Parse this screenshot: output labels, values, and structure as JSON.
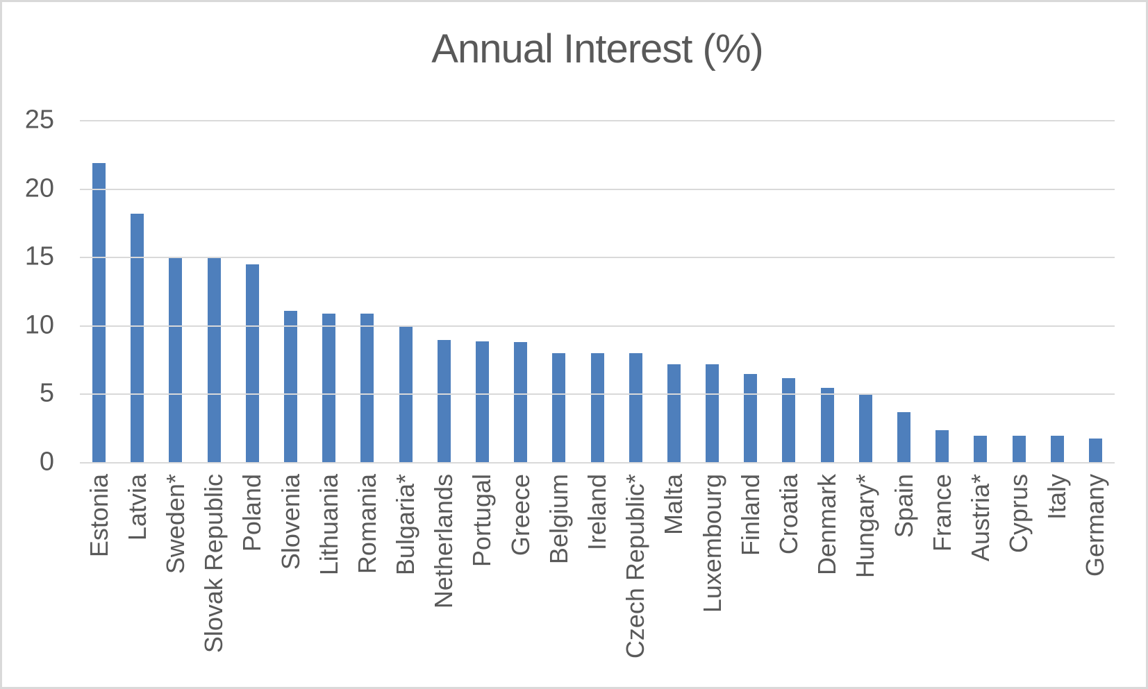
{
  "chart_data": {
    "type": "bar",
    "title": "Annual Interest (%)",
    "categories": [
      "Estonia",
      "Latvia",
      "Sweden*",
      "Slovak Republic",
      "Poland",
      "Slovenia",
      "Lithuania",
      "Romania",
      "Bulgaria*",
      "Netherlands",
      "Portugal",
      "Greece",
      "Belgium",
      "Ireland",
      "Czech Republic*",
      "Malta",
      "Luxembourg",
      "Finland",
      "Croatia",
      "Denmark",
      "Hungary*",
      "Spain",
      "France",
      "Austria*",
      "Cyprus",
      "Italy",
      "Germany"
    ],
    "values": [
      21.9,
      18.2,
      15.0,
      15.0,
      14.5,
      11.1,
      10.9,
      10.9,
      10.0,
      9.0,
      8.9,
      8.8,
      8.0,
      8.0,
      8.0,
      7.2,
      7.2,
      6.5,
      6.2,
      5.5,
      5.0,
      3.7,
      2.4,
      2.0,
      2.0,
      2.0,
      1.8
    ],
    "xlabel": "",
    "ylabel": "",
    "ylim": [
      0,
      25
    ],
    "yticks": [
      0,
      5,
      10,
      15,
      20,
      25
    ],
    "grid": true,
    "legend": "none"
  },
  "colors": {
    "bar": "#4e7fbc",
    "gridline": "#d9d9d9",
    "text": "#595959",
    "frame_border": "#d9d9d9",
    "background": "#ffffff"
  }
}
